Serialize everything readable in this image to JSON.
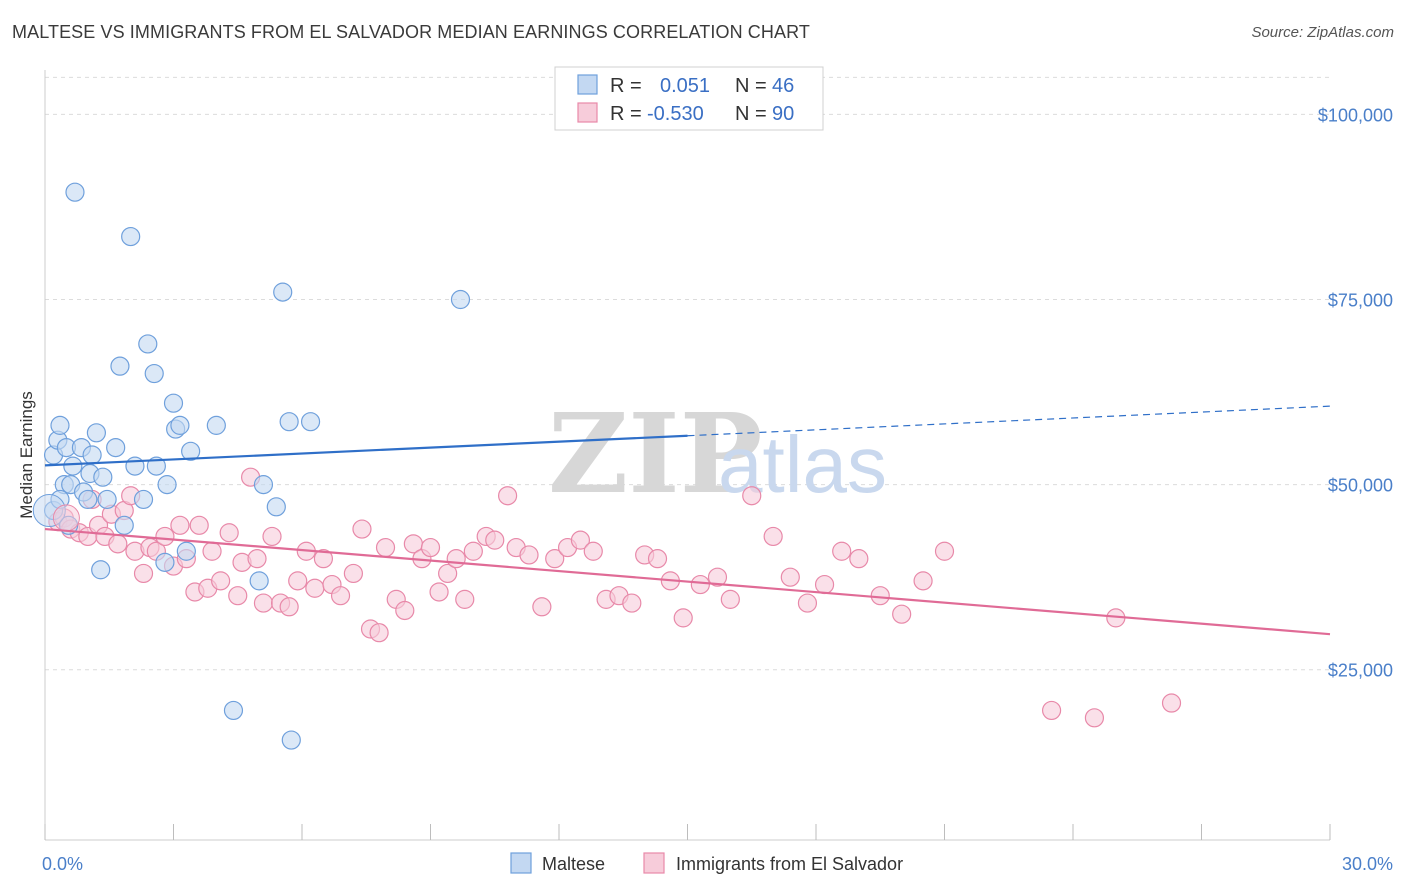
{
  "header": {
    "title": "MALTESE VS IMMIGRANTS FROM EL SALVADOR MEDIAN EARNINGS CORRELATION CHART",
    "source": "Source: ZipAtlas.com"
  },
  "watermark": {
    "zip": "ZIP",
    "atlas": "atlas"
  },
  "legend_top": {
    "rows": [
      {
        "r_label": "R =",
        "r_value": "0.051",
        "n_label": "N =",
        "n_value": "46"
      },
      {
        "r_label": "R =",
        "r_value": "-0.530",
        "n_label": "N =",
        "n_value": "90"
      }
    ]
  },
  "chart_data": {
    "type": "scatter",
    "title": "MALTESE VS IMMIGRANTS FROM EL SALVADOR MEDIAN EARNINGS CORRELATION CHART",
    "xlabel": "",
    "ylabel": "Median Earnings",
    "xlim": [
      0,
      30
    ],
    "ylim": [
      2000,
      106000
    ],
    "x_tick_labels": [
      "0.0%",
      "30.0%"
    ],
    "y_ticks": [
      25000,
      50000,
      75000,
      100000
    ],
    "y_tick_labels": [
      "$25,000",
      "$50,000",
      "$75,000",
      "$100,000"
    ],
    "grid": true,
    "legend_placement": "top-center and bottom",
    "colors": {
      "maltese": "#6fa0dc",
      "maltese_fill": "#c3d8f2",
      "maltese_line": "#2f6fc8",
      "salvador": "#e889a9",
      "salvador_fill": "#f7ccda",
      "salvador_line": "#e06b96"
    },
    "series": [
      {
        "name": "Maltese",
        "r": 0.051,
        "n": 46,
        "trend": {
          "x0": 0.0,
          "y0": 52600,
          "x1": 15.0,
          "y1": 56600,
          "dash_x1": 30.0,
          "dash_y1": 60600
        },
        "points": [
          [
            0.2,
            46500
          ],
          [
            0.2,
            54000
          ],
          [
            0.3,
            56000
          ],
          [
            0.35,
            58000
          ],
          [
            0.45,
            50000
          ],
          [
            0.5,
            55000
          ],
          [
            0.6,
            50000
          ],
          [
            0.65,
            52500
          ],
          [
            0.7,
            89500
          ],
          [
            0.85,
            55000
          ],
          [
            0.9,
            49000
          ],
          [
            1.0,
            48000
          ],
          [
            1.05,
            51500
          ],
          [
            1.1,
            54000
          ],
          [
            1.2,
            57000
          ],
          [
            1.3,
            38500
          ],
          [
            1.35,
            51000
          ],
          [
            1.45,
            48000
          ],
          [
            1.65,
            55000
          ],
          [
            1.75,
            66000
          ],
          [
            1.85,
            44500
          ],
          [
            2.0,
            83500
          ],
          [
            2.1,
            52500
          ],
          [
            2.3,
            48000
          ],
          [
            2.4,
            69000
          ],
          [
            2.55,
            65000
          ],
          [
            2.6,
            52500
          ],
          [
            2.8,
            39500
          ],
          [
            2.85,
            50000
          ],
          [
            3.0,
            61000
          ],
          [
            3.05,
            57500
          ],
          [
            3.15,
            58000
          ],
          [
            3.3,
            41000
          ],
          [
            3.4,
            54500
          ],
          [
            4.0,
            58000
          ],
          [
            4.4,
            19500
          ],
          [
            5.0,
            37000
          ],
          [
            5.1,
            50000
          ],
          [
            5.4,
            47000
          ],
          [
            5.55,
            76000
          ],
          [
            5.7,
            58500
          ],
          [
            5.75,
            15500
          ],
          [
            6.2,
            58500
          ],
          [
            9.7,
            75000
          ],
          [
            0.35,
            48000
          ],
          [
            0.55,
            44500
          ]
        ]
      },
      {
        "name": "Immigrants from El Salvador",
        "r": -0.53,
        "n": 90,
        "trend": {
          "x0": 0.0,
          "y0": 44000,
          "x1": 30.0,
          "y1": 29800
        },
        "points": [
          [
            0.3,
            45000
          ],
          [
            0.45,
            45500
          ],
          [
            0.6,
            44000
          ],
          [
            0.8,
            43500
          ],
          [
            1.0,
            43000
          ],
          [
            1.1,
            48000
          ],
          [
            1.25,
            44500
          ],
          [
            1.4,
            43000
          ],
          [
            1.55,
            46000
          ],
          [
            1.7,
            42000
          ],
          [
            1.85,
            46500
          ],
          [
            2.0,
            48500
          ],
          [
            2.1,
            41000
          ],
          [
            2.3,
            38000
          ],
          [
            2.45,
            41500
          ],
          [
            2.6,
            41000
          ],
          [
            2.8,
            43000
          ],
          [
            3.0,
            39000
          ],
          [
            3.15,
            44500
          ],
          [
            3.3,
            40000
          ],
          [
            3.5,
            35500
          ],
          [
            3.6,
            44500
          ],
          [
            3.8,
            36000
          ],
          [
            3.9,
            41000
          ],
          [
            4.1,
            37000
          ],
          [
            4.3,
            43500
          ],
          [
            4.5,
            35000
          ],
          [
            4.6,
            39500
          ],
          [
            4.8,
            51000
          ],
          [
            4.95,
            40000
          ],
          [
            5.1,
            34000
          ],
          [
            5.3,
            43000
          ],
          [
            5.5,
            34000
          ],
          [
            5.7,
            33500
          ],
          [
            5.9,
            37000
          ],
          [
            6.1,
            41000
          ],
          [
            6.3,
            36000
          ],
          [
            6.5,
            40000
          ],
          [
            6.7,
            36500
          ],
          [
            6.9,
            35000
          ],
          [
            7.2,
            38000
          ],
          [
            7.4,
            44000
          ],
          [
            7.6,
            30500
          ],
          [
            7.8,
            30000
          ],
          [
            7.95,
            41500
          ],
          [
            8.2,
            34500
          ],
          [
            8.4,
            33000
          ],
          [
            8.6,
            42000
          ],
          [
            8.8,
            40000
          ],
          [
            9.0,
            41500
          ],
          [
            9.2,
            35500
          ],
          [
            9.4,
            38000
          ],
          [
            9.6,
            40000
          ],
          [
            9.8,
            34500
          ],
          [
            10.0,
            41000
          ],
          [
            10.3,
            43000
          ],
          [
            10.5,
            42500
          ],
          [
            10.8,
            48500
          ],
          [
            11.0,
            41500
          ],
          [
            11.3,
            40500
          ],
          [
            11.6,
            33500
          ],
          [
            11.9,
            40000
          ],
          [
            12.2,
            41500
          ],
          [
            12.5,
            42500
          ],
          [
            12.8,
            41000
          ],
          [
            13.1,
            34500
          ],
          [
            13.4,
            35000
          ],
          [
            13.7,
            34000
          ],
          [
            14.0,
            40500
          ],
          [
            14.3,
            40000
          ],
          [
            14.6,
            37000
          ],
          [
            14.9,
            32000
          ],
          [
            15.3,
            36500
          ],
          [
            15.7,
            37500
          ],
          [
            16.0,
            34500
          ],
          [
            16.5,
            48500
          ],
          [
            17.0,
            43000
          ],
          [
            17.4,
            37500
          ],
          [
            17.8,
            34000
          ],
          [
            18.2,
            36500
          ],
          [
            18.6,
            41000
          ],
          [
            19.0,
            40000
          ],
          [
            19.5,
            35000
          ],
          [
            20.0,
            32500
          ],
          [
            20.5,
            37000
          ],
          [
            21.0,
            41000
          ],
          [
            23.5,
            19500
          ],
          [
            24.5,
            18500
          ],
          [
            25.0,
            32000
          ],
          [
            26.3,
            20500
          ]
        ]
      }
    ]
  },
  "legend_bottom": {
    "items": [
      {
        "label": "Maltese"
      },
      {
        "label": "Immigrants from El Salvador"
      }
    ]
  }
}
